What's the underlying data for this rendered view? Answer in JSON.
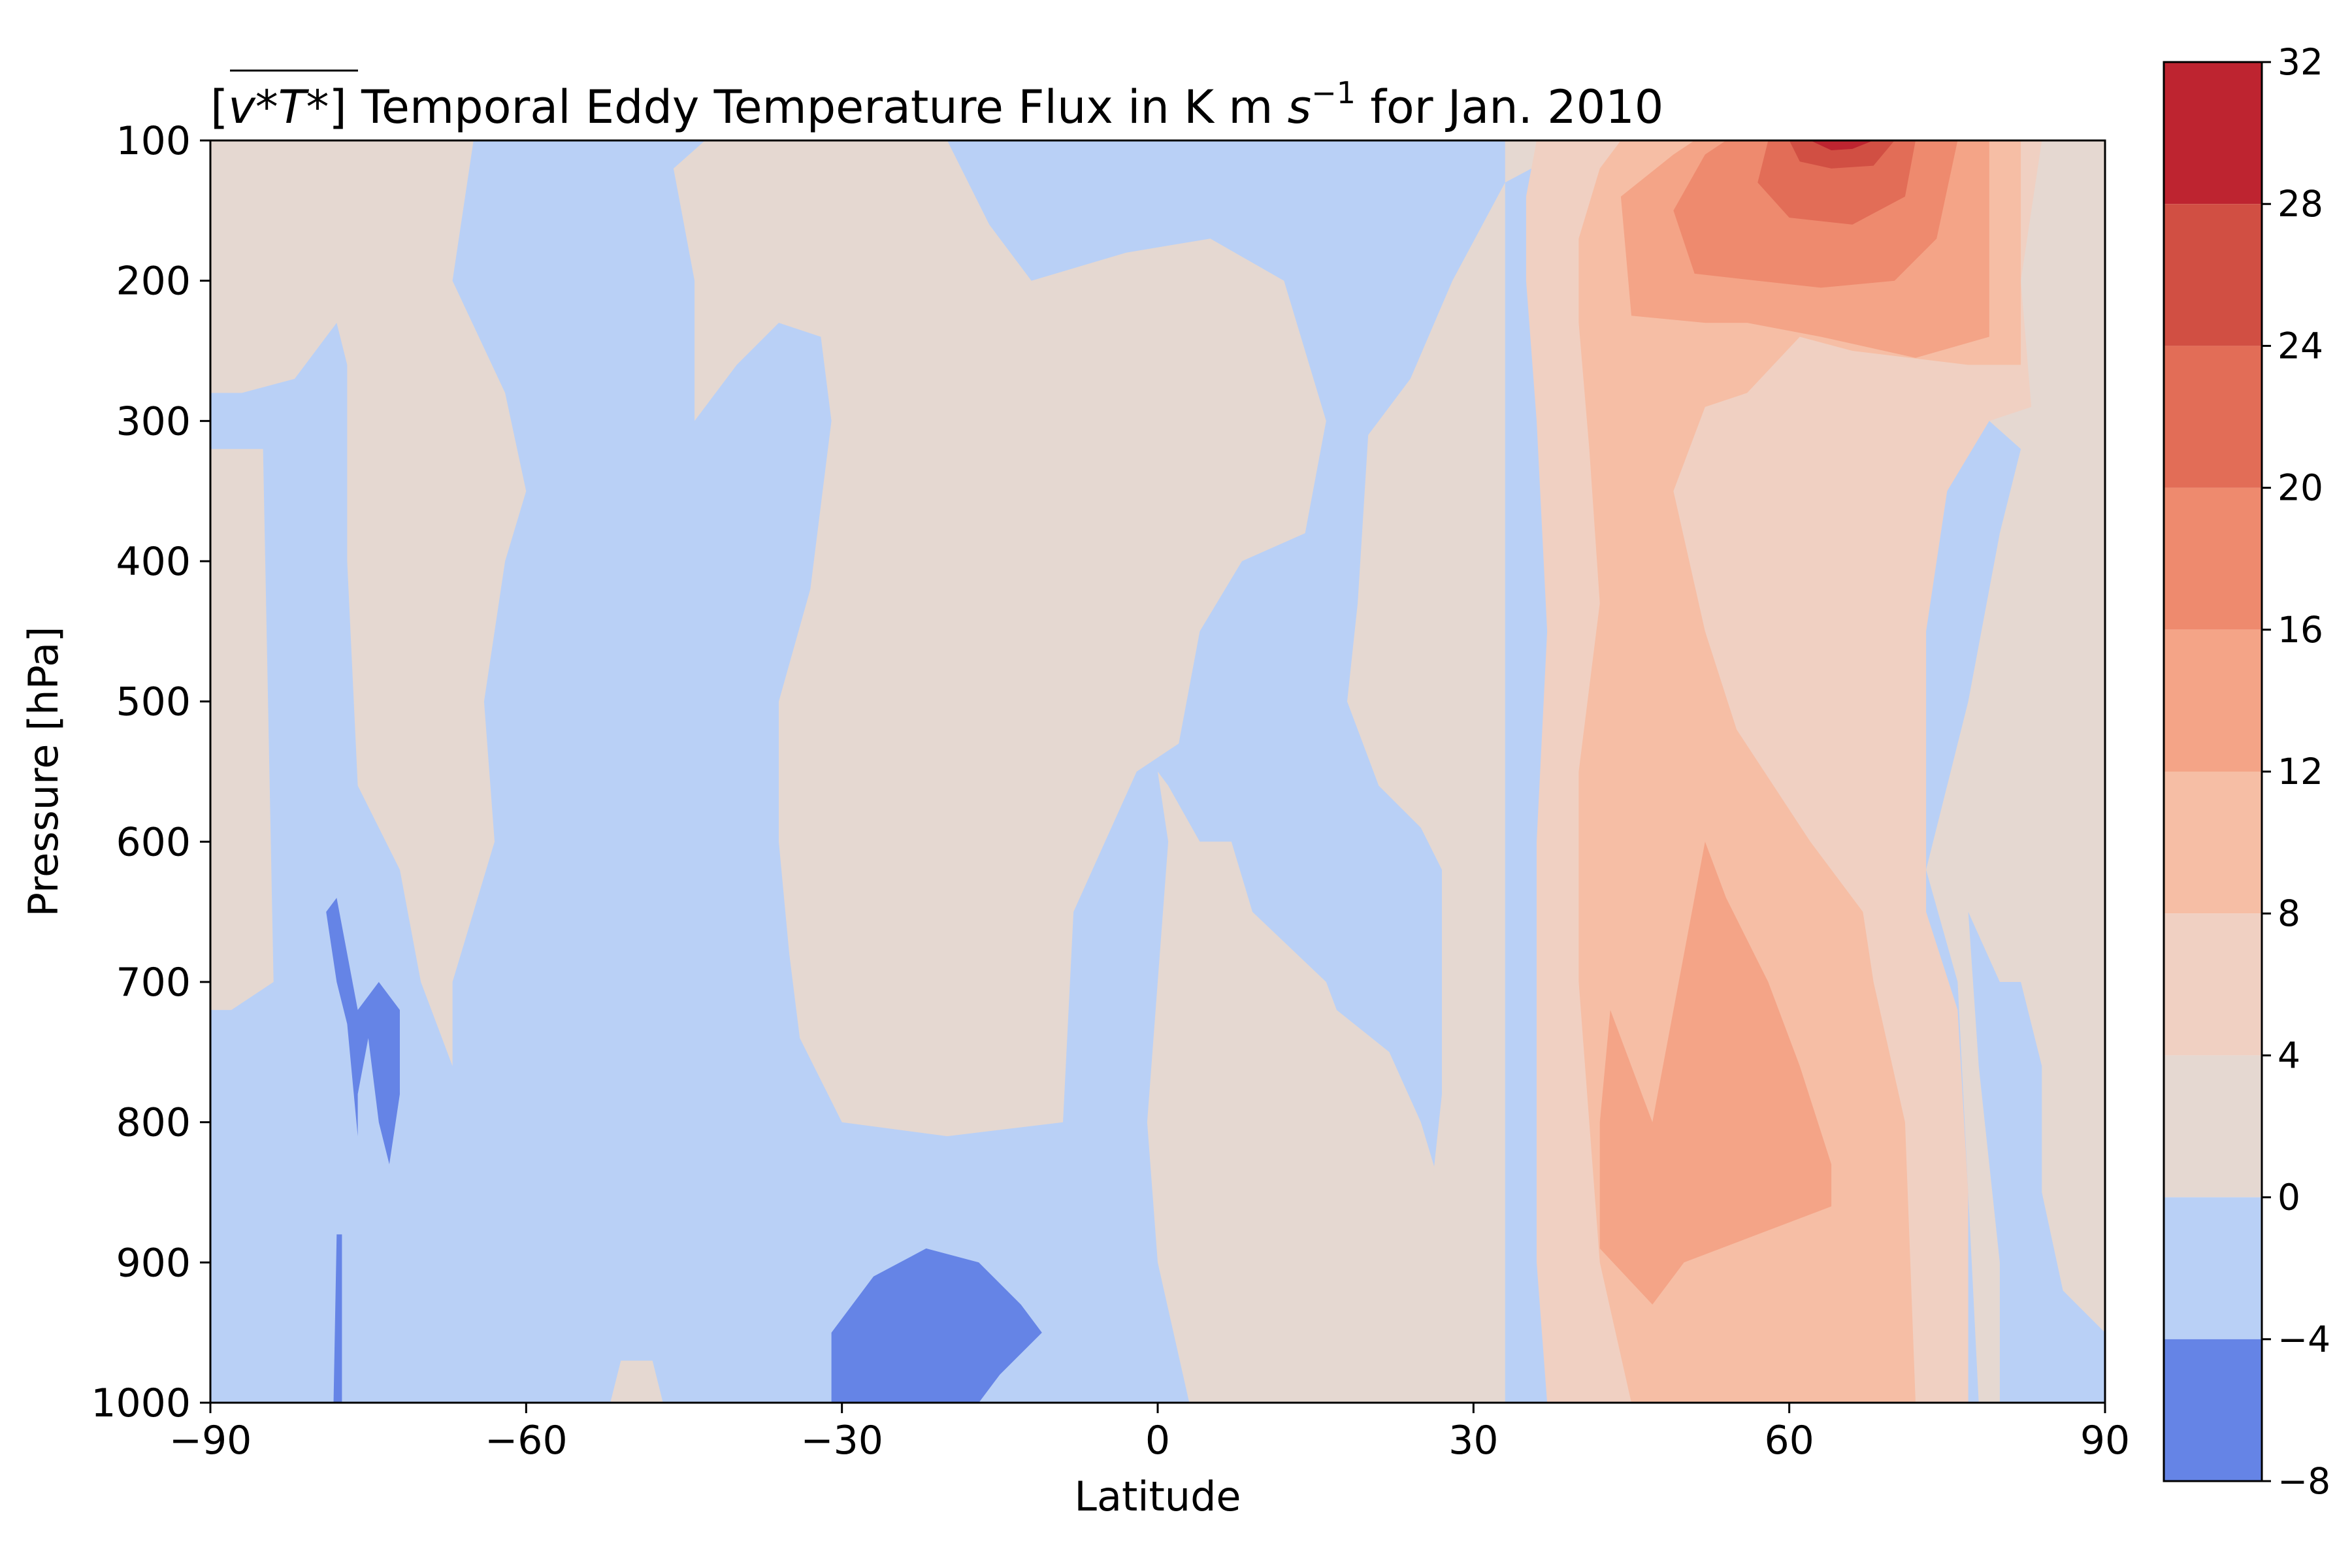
{
  "chart_data": {
    "type": "filled-contour",
    "title": {
      "overline_expr": "v*T*",
      "text": "] Temporal Eddy Temperature Flux in K m ",
      "unit_sup": "−1",
      "tail": " for Jan. 2010"
    },
    "xlabel": "Latitude",
    "ylabel": "Pressure [hPa]",
    "x_ticks": [
      "−90",
      "−60",
      "−30",
      "0",
      "30",
      "60",
      "90"
    ],
    "y_ticks": [
      "100",
      "200",
      "300",
      "400",
      "500",
      "600",
      "700",
      "800",
      "900",
      "1000"
    ],
    "xlim": [
      -90,
      90
    ],
    "ylim": [
      1000,
      100
    ],
    "y_inverted": true,
    "colorbar": {
      "labels": [
        "32",
        "28",
        "24",
        "20",
        "16",
        "12",
        "8",
        "4",
        "0",
        "−4",
        "−8"
      ],
      "levels": [
        32,
        28,
        24,
        20,
        16,
        12,
        8,
        4,
        0,
        -4,
        -8
      ],
      "colors": [
        "#be2430",
        "#d14f43",
        "#e26d57",
        "#ee8a6e",
        "#f4a487",
        "#f6bea5",
        "#f0d0c2",
        "#e5d8d1",
        "#b9d0f6",
        "#6584e6"
      ]
    },
    "regions": [
      {
        "level": "0 to 4",
        "color": "#e5d8d1",
        "points": [
          [
            -90,
            100
          ],
          [
            -65,
            100
          ],
          [
            -67,
            200
          ],
          [
            -62,
            280
          ],
          [
            -60,
            350
          ],
          [
            -62,
            400
          ],
          [
            -64,
            500
          ],
          [
            -63,
            600
          ],
          [
            -67,
            700
          ],
          [
            -67,
            760
          ],
          [
            -70,
            700
          ],
          [
            -72,
            620
          ],
          [
            -76,
            560
          ],
          [
            -77,
            400
          ],
          [
            -77,
            260
          ],
          [
            -78,
            230
          ],
          [
            -82,
            270
          ],
          [
            -87,
            280
          ],
          [
            -90,
            280
          ]
        ]
      },
      {
        "level": "0 to 4",
        "color": "#e5d8d1",
        "points": [
          [
            -43,
            100
          ],
          [
            -20,
            100
          ],
          [
            -16,
            160
          ],
          [
            -12,
            200
          ],
          [
            -3,
            180
          ],
          [
            5,
            170
          ],
          [
            12,
            200
          ],
          [
            16,
            300
          ],
          [
            14,
            380
          ],
          [
            8,
            400
          ],
          [
            4,
            450
          ],
          [
            2,
            530
          ],
          [
            -2,
            550
          ],
          [
            -5,
            600
          ],
          [
            -8,
            650
          ],
          [
            -9,
            800
          ],
          [
            -20,
            810
          ],
          [
            -30,
            800
          ],
          [
            -34,
            740
          ],
          [
            -35,
            680
          ],
          [
            -36,
            600
          ],
          [
            -36,
            500
          ],
          [
            -33,
            420
          ],
          [
            -31,
            300
          ],
          [
            -32,
            240
          ],
          [
            -36,
            230
          ],
          [
            -40,
            260
          ],
          [
            -44,
            300
          ],
          [
            -44,
            200
          ],
          [
            -46,
            120
          ]
        ]
      },
      {
        "level": "0 to 4",
        "color": "#e5d8d1",
        "points": [
          [
            0,
            550
          ],
          [
            1,
            600
          ],
          [
            0,
            700
          ],
          [
            -1,
            800
          ],
          [
            0,
            900
          ],
          [
            3,
            1000
          ],
          [
            27,
            1000
          ],
          [
            27,
            850
          ],
          [
            25,
            800
          ],
          [
            22,
            750
          ],
          [
            17,
            720
          ],
          [
            16,
            700
          ],
          [
            9,
            650
          ],
          [
            7,
            600
          ],
          [
            4,
            600
          ],
          [
            1,
            560
          ]
        ]
      },
      {
        "level": "0 to 4",
        "color": "#e5d8d1",
        "points": [
          [
            -52,
            1000
          ],
          [
            -47,
            1000
          ],
          [
            -48,
            970
          ],
          [
            -51,
            970
          ]
        ]
      },
      {
        "level": "0 to 4",
        "color": "#e5d8d1",
        "points": [
          [
            -90,
            320
          ],
          [
            -85,
            320
          ],
          [
            -84,
            700
          ],
          [
            -88,
            720
          ],
          [
            -90,
            720
          ]
        ]
      },
      {
        "level": "0 to 4",
        "color": "#e5d8d1",
        "points": [
          [
            33,
            100
          ],
          [
            90,
            100
          ],
          [
            90,
            1000
          ],
          [
            78,
            1000
          ],
          [
            76,
            700
          ],
          [
            73,
            620
          ],
          [
            77,
            500
          ],
          [
            80,
            380
          ],
          [
            82,
            320
          ],
          [
            79,
            300
          ],
          [
            72,
            210
          ],
          [
            66,
            180
          ],
          [
            60,
            150
          ],
          [
            54,
            120
          ],
          [
            45,
            110
          ],
          [
            38,
            110
          ],
          [
            33,
            130
          ],
          [
            28,
            200
          ],
          [
            24,
            270
          ],
          [
            20,
            310
          ],
          [
            19,
            430
          ],
          [
            18,
            500
          ],
          [
            21,
            560
          ],
          [
            25,
            590
          ],
          [
            27,
            620
          ],
          [
            27,
            780
          ],
          [
            26,
            850
          ],
          [
            27,
            1000
          ],
          [
            33,
            1000
          ]
        ]
      },
      {
        "level": "4 to 8",
        "color": "#f0d0c2",
        "points": [
          [
            36,
            100
          ],
          [
            84,
            100
          ],
          [
            82,
            200
          ],
          [
            83,
            290
          ],
          [
            79,
            300
          ],
          [
            75,
            350
          ],
          [
            73,
            450
          ],
          [
            73,
            550
          ],
          [
            73,
            650
          ],
          [
            76,
            720
          ],
          [
            77,
            850
          ],
          [
            77,
            1000
          ],
          [
            37,
            1000
          ],
          [
            36,
            900
          ],
          [
            36,
            800
          ],
          [
            36,
            600
          ],
          [
            37,
            450
          ],
          [
            36,
            300
          ],
          [
            35,
            200
          ],
          [
            35,
            140
          ]
        ]
      },
      {
        "level": "8 to 12",
        "color": "#f6bea5",
        "points": [
          [
            44,
            100
          ],
          [
            82,
            100
          ],
          [
            82,
            260
          ],
          [
            77,
            260
          ],
          [
            66,
            250
          ],
          [
            61,
            240
          ],
          [
            56,
            280
          ],
          [
            52,
            290
          ],
          [
            49,
            350
          ],
          [
            52,
            450
          ],
          [
            55,
            520
          ],
          [
            62,
            600
          ],
          [
            67,
            650
          ],
          [
            68,
            700
          ],
          [
            71,
            800
          ],
          [
            72,
            1000
          ],
          [
            45,
            1000
          ],
          [
            42,
            900
          ],
          [
            40,
            700
          ],
          [
            40,
            550
          ],
          [
            42,
            430
          ],
          [
            41,
            320
          ],
          [
            40,
            230
          ],
          [
            40,
            170
          ],
          [
            42,
            120
          ]
        ]
      },
      {
        "level": "12 to 16",
        "color": "#f4a487",
        "points": [
          [
            51,
            100
          ],
          [
            79,
            100
          ],
          [
            79,
            240
          ],
          [
            72,
            255
          ],
          [
            63,
            240
          ],
          [
            56,
            230
          ],
          [
            52,
            230
          ],
          [
            45,
            225
          ],
          [
            44,
            140
          ],
          [
            49,
            110
          ]
        ]
      },
      {
        "level": "12 to 16",
        "color": "#f4a487",
        "points": [
          [
            47,
            800
          ],
          [
            52,
            600
          ],
          [
            54,
            640
          ],
          [
            58,
            700
          ],
          [
            61,
            760
          ],
          [
            64,
            830
          ],
          [
            64,
            860
          ],
          [
            57,
            880
          ],
          [
            50,
            900
          ],
          [
            47,
            930
          ],
          [
            42,
            890
          ],
          [
            42,
            800
          ],
          [
            43,
            720
          ]
        ]
      },
      {
        "level": "16 to 20",
        "color": "#ee8a6e",
        "points": [
          [
            54,
            100
          ],
          [
            76,
            100
          ],
          [
            74,
            170
          ],
          [
            70,
            200
          ],
          [
            63,
            205
          ],
          [
            57,
            200
          ],
          [
            51,
            195
          ],
          [
            49,
            150
          ],
          [
            52,
            110
          ]
        ]
      },
      {
        "level": "20 to 24",
        "color": "#e26d57",
        "points": [
          [
            58,
            100
          ],
          [
            72,
            100
          ],
          [
            71,
            140
          ],
          [
            66,
            160
          ],
          [
            60,
            155
          ],
          [
            57,
            130
          ]
        ]
      },
      {
        "level": "24 to 28",
        "color": "#d14f43",
        "points": [
          [
            60,
            100
          ],
          [
            70,
            100
          ],
          [
            68,
            118
          ],
          [
            64,
            120
          ],
          [
            61,
            115
          ]
        ]
      },
      {
        "level": "28 to 32",
        "color": "#be2430",
        "points": [
          [
            62,
            100
          ],
          [
            68,
            100
          ],
          [
            66,
            106
          ],
          [
            64,
            107
          ]
        ]
      },
      {
        "level": "-8 to -4",
        "color": "#6584e6",
        "points": [
          [
            -31,
            950
          ],
          [
            -27,
            910
          ],
          [
            -22,
            890
          ],
          [
            -17,
            900
          ],
          [
            -13,
            930
          ],
          [
            -11,
            950
          ],
          [
            -15,
            980
          ],
          [
            -17,
            1000
          ],
          [
            -31,
            1000
          ]
        ]
      },
      {
        "level": "-8 to -4",
        "color": "#6584e6",
        "points": [
          [
            -79,
            650
          ],
          [
            -78,
            640
          ],
          [
            -76,
            720
          ],
          [
            -74,
            700
          ],
          [
            -72,
            720
          ],
          [
            -72,
            780
          ],
          [
            -73,
            830
          ],
          [
            -74,
            800
          ],
          [
            -75,
            740
          ],
          [
            -76,
            780
          ],
          [
            -76,
            810
          ],
          [
            -77,
            730
          ],
          [
            -78,
            700
          ]
        ]
      },
      {
        "level": "-8 to -4",
        "color": "#6584e6",
        "points": [
          [
            -78,
            880
          ],
          [
            -77.5,
            880
          ],
          [
            -77.5,
            1000
          ],
          [
            -78.3,
            1000
          ]
        ]
      },
      {
        "level": "-4 to 0",
        "color": "#b9d0f6",
        "points": [
          [
            77,
            650
          ],
          [
            80,
            700
          ],
          [
            82,
            700
          ],
          [
            84,
            760
          ],
          [
            84,
            850
          ],
          [
            86,
            920
          ],
          [
            90,
            950
          ],
          [
            90,
            1000
          ],
          [
            80,
            1000
          ],
          [
            80,
            900
          ],
          [
            78,
            760
          ]
        ]
      }
    ]
  }
}
